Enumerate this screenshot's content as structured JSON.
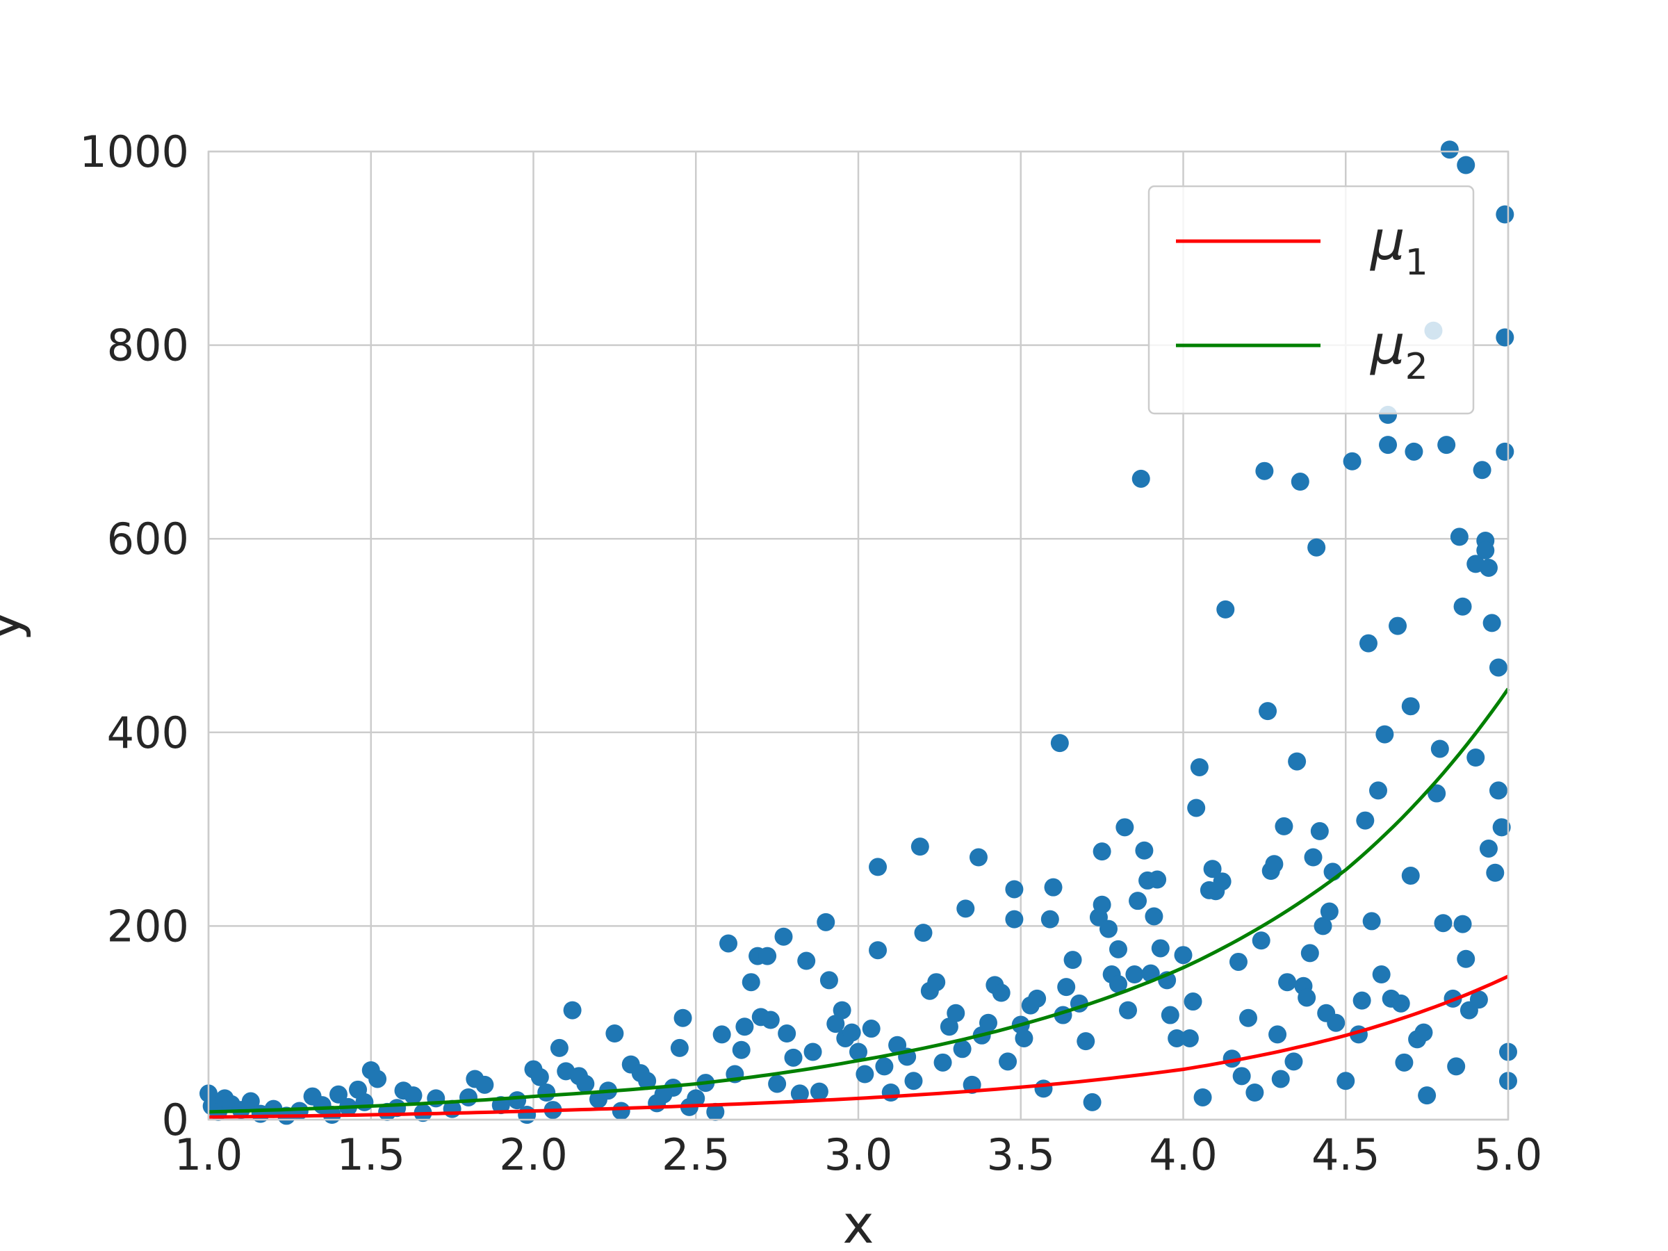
{
  "chart_data": {
    "type": "scatter",
    "xlabel": "x",
    "ylabel": "y",
    "xlim": [
      1.0,
      5.0
    ],
    "ylim": [
      0,
      1000
    ],
    "x_ticks": [
      "1.0",
      "1.5",
      "2.0",
      "2.5",
      "3.0",
      "3.5",
      "4.0",
      "4.5",
      "5.0"
    ],
    "y_ticks": [
      "0",
      "200",
      "400",
      "600",
      "800",
      "1000"
    ],
    "grid": true,
    "legend": {
      "placement": "top-right",
      "entries": [
        {
          "label": "μ",
          "subscript": "1",
          "color": "#ff0000"
        },
        {
          "label": "μ",
          "subscript": "2",
          "color": "#008000"
        }
      ]
    },
    "colors": {
      "scatter": "#1f77b4",
      "mu1": "#ff0000",
      "mu2": "#008000",
      "grid": "#cccccc"
    },
    "series": [
      {
        "kind": "line",
        "legend_index": 0,
        "x": [
          1.0,
          1.5,
          2.0,
          2.5,
          3.0,
          3.5,
          4.0,
          4.5,
          5.0
        ],
        "y": [
          2.7,
          5.0,
          9.0,
          14.5,
          22.0,
          33.5,
          52.0,
          87.0,
          148.0
        ]
      },
      {
        "kind": "line",
        "legend_index": 1,
        "x": [
          1.0,
          1.5,
          2.0,
          2.5,
          3.0,
          3.5,
          4.0,
          4.5,
          5.0
        ],
        "y": [
          8.0,
          14.0,
          24.0,
          37.0,
          61.0,
          98.0,
          157.0,
          258.0,
          445.0
        ]
      },
      {
        "kind": "scatter",
        "points": [
          [
            1.0,
            27
          ],
          [
            1.01,
            14
          ],
          [
            1.03,
            8
          ],
          [
            1.05,
            22
          ],
          [
            1.07,
            16
          ],
          [
            1.1,
            10
          ],
          [
            1.13,
            19
          ],
          [
            1.16,
            6
          ],
          [
            1.2,
            11
          ],
          [
            1.24,
            4
          ],
          [
            1.28,
            9
          ],
          [
            1.32,
            24
          ],
          [
            1.35,
            15
          ],
          [
            1.38,
            5
          ],
          [
            1.4,
            26
          ],
          [
            1.43,
            13
          ],
          [
            1.46,
            31
          ],
          [
            1.48,
            18
          ],
          [
            1.5,
            51
          ],
          [
            1.52,
            42
          ],
          [
            1.55,
            8
          ],
          [
            1.58,
            12
          ],
          [
            1.6,
            30
          ],
          [
            1.63,
            25
          ],
          [
            1.66,
            7
          ],
          [
            1.7,
            22
          ],
          [
            1.75,
            11
          ],
          [
            1.8,
            23
          ],
          [
            1.82,
            42
          ],
          [
            1.85,
            36
          ],
          [
            1.9,
            15
          ],
          [
            1.95,
            20
          ],
          [
            1.98,
            5
          ],
          [
            2.0,
            52
          ],
          [
            2.02,
            44
          ],
          [
            2.04,
            28
          ],
          [
            2.06,
            10
          ],
          [
            2.08,
            74
          ],
          [
            2.1,
            50
          ],
          [
            2.12,
            113
          ],
          [
            2.14,
            45
          ],
          [
            2.16,
            37
          ],
          [
            2.2,
            21
          ],
          [
            2.23,
            30
          ],
          [
            2.25,
            89
          ],
          [
            2.27,
            9
          ],
          [
            2.3,
            57
          ],
          [
            2.33,
            48
          ],
          [
            2.35,
            40
          ],
          [
            2.38,
            17
          ],
          [
            2.4,
            26
          ],
          [
            2.43,
            33
          ],
          [
            2.45,
            74
          ],
          [
            2.46,
            105
          ],
          [
            2.48,
            13
          ],
          [
            2.5,
            22
          ],
          [
            2.53,
            38
          ],
          [
            2.56,
            8
          ],
          [
            2.58,
            88
          ],
          [
            2.6,
            182
          ],
          [
            2.62,
            47
          ],
          [
            2.64,
            72
          ],
          [
            2.65,
            96
          ],
          [
            2.67,
            142
          ],
          [
            2.69,
            169
          ],
          [
            2.7,
            106
          ],
          [
            2.72,
            169
          ],
          [
            2.73,
            103
          ],
          [
            2.75,
            37
          ],
          [
            2.77,
            189
          ],
          [
            2.78,
            89
          ],
          [
            2.8,
            64
          ],
          [
            2.82,
            27
          ],
          [
            2.84,
            164
          ],
          [
            2.86,
            70
          ],
          [
            2.88,
            29
          ],
          [
            2.9,
            204
          ],
          [
            2.91,
            144
          ],
          [
            2.93,
            99
          ],
          [
            2.95,
            113
          ],
          [
            2.96,
            84
          ],
          [
            2.98,
            90
          ],
          [
            3.0,
            70
          ],
          [
            3.02,
            47
          ],
          [
            3.04,
            94
          ],
          [
            3.06,
            261
          ],
          [
            3.06,
            175
          ],
          [
            3.08,
            55
          ],
          [
            3.1,
            28
          ],
          [
            3.12,
            77
          ],
          [
            3.15,
            65
          ],
          [
            3.17,
            40
          ],
          [
            3.19,
            282
          ],
          [
            3.2,
            193
          ],
          [
            3.22,
            133
          ],
          [
            3.24,
            142
          ],
          [
            3.26,
            59
          ],
          [
            3.28,
            96
          ],
          [
            3.3,
            110
          ],
          [
            3.32,
            73
          ],
          [
            3.33,
            218
          ],
          [
            3.35,
            36
          ],
          [
            3.37,
            271
          ],
          [
            3.38,
            87
          ],
          [
            3.4,
            100
          ],
          [
            3.42,
            139
          ],
          [
            3.44,
            131
          ],
          [
            3.46,
            60
          ],
          [
            3.48,
            238
          ],
          [
            3.48,
            207
          ],
          [
            3.5,
            98
          ],
          [
            3.51,
            84
          ],
          [
            3.53,
            118
          ],
          [
            3.55,
            125
          ],
          [
            3.57,
            32
          ],
          [
            3.59,
            207
          ],
          [
            3.6,
            240
          ],
          [
            3.62,
            389
          ],
          [
            3.63,
            108
          ],
          [
            3.64,
            137
          ],
          [
            3.66,
            165
          ],
          [
            3.68,
            120
          ],
          [
            3.7,
            81
          ],
          [
            3.72,
            18
          ],
          [
            3.74,
            209
          ],
          [
            3.75,
            277
          ],
          [
            3.75,
            222
          ],
          [
            3.77,
            197
          ],
          [
            3.78,
            150
          ],
          [
            3.8,
            176
          ],
          [
            3.8,
            140
          ],
          [
            3.82,
            302
          ],
          [
            3.83,
            113
          ],
          [
            3.85,
            150
          ],
          [
            3.86,
            226
          ],
          [
            3.87,
            662
          ],
          [
            3.88,
            278
          ],
          [
            3.89,
            247
          ],
          [
            3.9,
            151
          ],
          [
            3.91,
            210
          ],
          [
            3.92,
            248
          ],
          [
            3.93,
            177
          ],
          [
            3.95,
            144
          ],
          [
            3.96,
            108
          ],
          [
            3.98,
            84
          ],
          [
            4.0,
            170
          ],
          [
            4.02,
            84
          ],
          [
            4.03,
            122
          ],
          [
            4.04,
            322
          ],
          [
            4.05,
            364
          ],
          [
            4.06,
            23
          ],
          [
            4.08,
            237
          ],
          [
            4.09,
            259
          ],
          [
            4.1,
            236
          ],
          [
            4.12,
            246
          ],
          [
            4.13,
            527
          ],
          [
            4.15,
            63
          ],
          [
            4.17,
            163
          ],
          [
            4.18,
            45
          ],
          [
            4.2,
            105
          ],
          [
            4.22,
            28
          ],
          [
            4.24,
            185
          ],
          [
            4.25,
            670
          ],
          [
            4.26,
            422
          ],
          [
            4.27,
            257
          ],
          [
            4.28,
            264
          ],
          [
            4.29,
            88
          ],
          [
            4.3,
            42
          ],
          [
            4.31,
            303
          ],
          [
            4.32,
            142
          ],
          [
            4.34,
            60
          ],
          [
            4.35,
            370
          ],
          [
            4.36,
            659
          ],
          [
            4.37,
            138
          ],
          [
            4.38,
            126
          ],
          [
            4.39,
            172
          ],
          [
            4.4,
            271
          ],
          [
            4.41,
            591
          ],
          [
            4.42,
            298
          ],
          [
            4.43,
            200
          ],
          [
            4.44,
            110
          ],
          [
            4.45,
            215
          ],
          [
            4.46,
            256
          ],
          [
            4.47,
            100
          ],
          [
            4.5,
            40
          ],
          [
            4.52,
            680
          ],
          [
            4.54,
            88
          ],
          [
            4.55,
            123
          ],
          [
            4.56,
            309
          ],
          [
            4.57,
            492
          ],
          [
            4.58,
            205
          ],
          [
            4.6,
            340
          ],
          [
            4.61,
            150
          ],
          [
            4.62,
            398
          ],
          [
            4.63,
            728
          ],
          [
            4.63,
            697
          ],
          [
            4.64,
            125
          ],
          [
            4.66,
            510
          ],
          [
            4.67,
            120
          ],
          [
            4.68,
            59
          ],
          [
            4.7,
            252
          ],
          [
            4.7,
            427
          ],
          [
            4.71,
            690
          ],
          [
            4.72,
            83
          ],
          [
            4.74,
            90
          ],
          [
            4.75,
            25
          ],
          [
            4.77,
            815
          ],
          [
            4.78,
            337
          ],
          [
            4.79,
            383
          ],
          [
            4.8,
            203
          ],
          [
            4.81,
            697
          ],
          [
            4.82,
            1002
          ],
          [
            4.83,
            125
          ],
          [
            4.84,
            55
          ],
          [
            4.85,
            602
          ],
          [
            4.86,
            530
          ],
          [
            4.86,
            202
          ],
          [
            4.87,
            986
          ],
          [
            4.87,
            166
          ],
          [
            4.88,
            113
          ],
          [
            4.9,
            574
          ],
          [
            4.9,
            374
          ],
          [
            4.91,
            124
          ],
          [
            4.92,
            671
          ],
          [
            4.93,
            598
          ],
          [
            4.93,
            588
          ],
          [
            4.94,
            570
          ],
          [
            4.94,
            280
          ],
          [
            4.95,
            513
          ],
          [
            4.96,
            255
          ],
          [
            4.97,
            467
          ],
          [
            4.97,
            340
          ],
          [
            4.98,
            302
          ],
          [
            4.99,
            935
          ],
          [
            4.99,
            808
          ],
          [
            4.99,
            690
          ],
          [
            5.0,
            70
          ],
          [
            5.0,
            40
          ]
        ]
      }
    ]
  }
}
